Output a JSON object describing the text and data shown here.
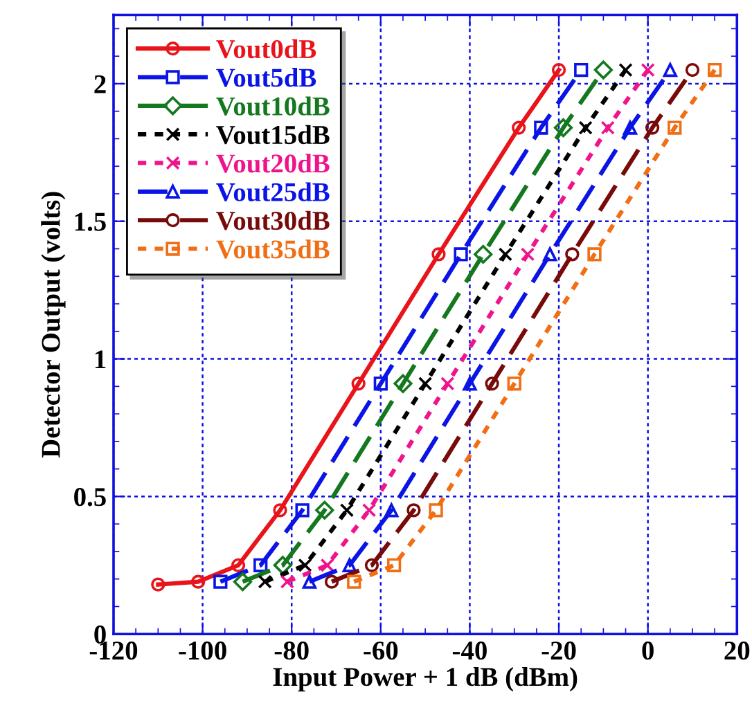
{
  "chart_data": {
    "type": "line",
    "xlabel": "Input Power + 1 dB (dBm)",
    "ylabel": "Detector Output (volts)",
    "xlim": [
      -120,
      20
    ],
    "ylim": [
      0,
      2.25
    ],
    "xticks": [
      -120,
      -100,
      -80,
      -60,
      -40,
      -20,
      0,
      20
    ],
    "yticks": [
      0,
      0.5,
      1,
      1.5,
      2
    ],
    "grid": true,
    "legend": "top left",
    "series": [
      {
        "name": "Vout0dB",
        "color": "#e8141a",
        "marker": "circle",
        "line_style": "solid",
        "x": [
          -110,
          -101,
          -92,
          -82.6,
          -65,
          -47,
          -29,
          -20
        ],
        "values": [
          0.18,
          0.19,
          0.25,
          0.45,
          0.91,
          1.38,
          1.84,
          2.05
        ]
      },
      {
        "name": "Vout5dB",
        "color": "#0a14e6",
        "marker": "square",
        "line_style": "dashed",
        "x": [
          -96,
          -87,
          -77.6,
          -60,
          -42,
          -24,
          -15
        ],
        "values": [
          0.19,
          0.25,
          0.45,
          0.91,
          1.38,
          1.84,
          2.05
        ]
      },
      {
        "name": "Vout10dB",
        "color": "#14781e",
        "marker": "diamond",
        "line_style": "dashed",
        "x": [
          -91,
          -82,
          -72.6,
          -55,
          -37,
          -19,
          -10
        ],
        "values": [
          0.19,
          0.25,
          0.45,
          0.91,
          1.38,
          1.84,
          2.05
        ]
      },
      {
        "name": "Vout15dB",
        "color": "#000000",
        "marker": "cross",
        "line_style": "dotted",
        "x": [
          -86,
          -77,
          -67.6,
          -50,
          -32,
          -14,
          -5
        ],
        "values": [
          0.19,
          0.25,
          0.45,
          0.91,
          1.38,
          1.84,
          2.05
        ]
      },
      {
        "name": "Vout20dB",
        "color": "#f0148c",
        "marker": "cross",
        "line_style": "dotted",
        "x": [
          -81,
          -72,
          -62.6,
          -45,
          -27,
          -9,
          0
        ],
        "values": [
          0.19,
          0.25,
          0.45,
          0.91,
          1.38,
          1.84,
          2.05
        ]
      },
      {
        "name": "Vout25dB",
        "color": "#0a14e6",
        "marker": "triangle",
        "line_style": "dashed",
        "x": [
          -76,
          -67,
          -57.6,
          -40,
          -22,
          -4,
          5
        ],
        "values": [
          0.19,
          0.25,
          0.45,
          0.91,
          1.38,
          1.84,
          2.05
        ]
      },
      {
        "name": "Vout30dB",
        "color": "#780a0a",
        "marker": "circle",
        "line_style": "dashed",
        "x": [
          -71,
          -62,
          -52.6,
          -35,
          -17,
          1,
          10
        ],
        "values": [
          0.19,
          0.25,
          0.45,
          0.91,
          1.38,
          1.84,
          2.05
        ]
      },
      {
        "name": "Vout35dB",
        "color": "#f06e14",
        "marker": "square",
        "line_style": "dotted",
        "x": [
          -66,
          -57,
          -47.6,
          -30,
          -12,
          6,
          15
        ],
        "values": [
          0.19,
          0.25,
          0.45,
          0.91,
          1.38,
          1.84,
          2.05
        ]
      }
    ]
  }
}
